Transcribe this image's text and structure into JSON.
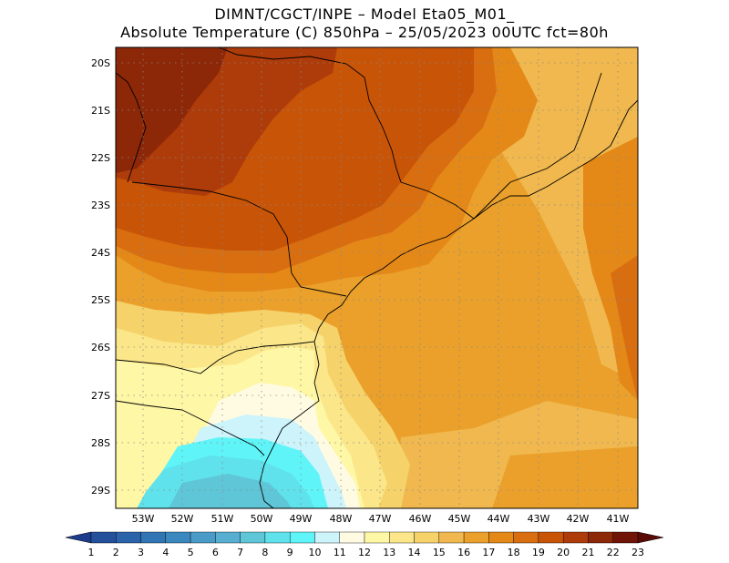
{
  "title_line1": "DIMNT/CGCT/INPE –  Model Eta05_M01_",
  "title_line2": "Absolute Temperature (C) 850hPa –  25/05/2023 00UTC fct=80h",
  "lat_labels": [
    "20S",
    "21S",
    "22S",
    "23S",
    "24S",
    "25S",
    "26S",
    "27S",
    "28S",
    "29S"
  ],
  "lon_labels": [
    "53W",
    "52W",
    "51W",
    "50W",
    "49W",
    "48W",
    "47W",
    "46W",
    "45W",
    "44W",
    "43W",
    "42W",
    "41W"
  ],
  "colorbar": {
    "labels": [
      "1",
      "2",
      "3",
      "4",
      "5",
      "6",
      "7",
      "8",
      "9",
      "10",
      "11",
      "12",
      "13",
      "14",
      "15",
      "16",
      "17",
      "18",
      "19",
      "20",
      "21",
      "22",
      "23"
    ],
    "colors": [
      "#1e3c8c",
      "#234f9b",
      "#2a63aa",
      "#3075b4",
      "#3a88be",
      "#4a9bc8",
      "#57aed1",
      "#5fc6d8",
      "#5fe2ec",
      "#5ff5f8",
      "#cdf3fb",
      "#fffbe3",
      "#fdf7a6",
      "#fbe789",
      "#f6d26b",
      "#f0b84e",
      "#eaa02a",
      "#e48818",
      "#d86e10",
      "#c85408",
      "#ad3c0a",
      "#8c2708",
      "#6f1406",
      "#5a0a05"
    ]
  },
  "map": {
    "colors": {
      "c10": "#5ff5f8",
      "c9": "#5fe2ec",
      "c8": "#5fc6d8",
      "c11": "#cdf3fb",
      "c12": "#fffbe3",
      "c13": "#fdf7a6",
      "c14": "#fbe789",
      "c15": "#f6d26b",
      "c16": "#f0b84e",
      "c17": "#eaa02a",
      "c18": "#e48818",
      "c19": "#d86e10",
      "c20": "#c85408",
      "c21": "#ad3c0a",
      "c22": "#8c2708"
    }
  }
}
